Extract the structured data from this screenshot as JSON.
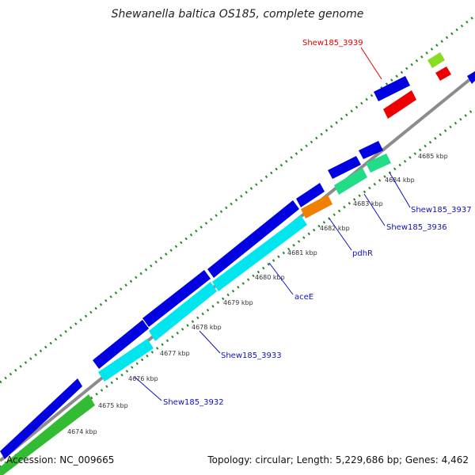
{
  "title": "Shewanella baltica OS185, complete genome",
  "footer": {
    "accession": "Accession: NC_009665",
    "summary": "Topology: circular; Length: 5,229,686 bp; Genes: 4,462"
  },
  "ticks": [
    "4674 kbp",
    "4675 kbp",
    "4676 kbp",
    "4677 kbp",
    "4678 kbp",
    "4679 kbp",
    "4680 kbp",
    "4681 kbp",
    "4682 kbp",
    "4683 kbp",
    "4684 kbp",
    "4685 kbp"
  ],
  "gene_labels": [
    {
      "text": "Shew185_3939",
      "color": "#e00000"
    },
    {
      "text": "Shew185_3937",
      "color": "#1010c0"
    },
    {
      "text": "Shew185_3936",
      "color": "#1010c0"
    },
    {
      "text": "pdhR",
      "color": "#1010c0"
    },
    {
      "text": "aceE",
      "color": "#1010c0"
    },
    {
      "text": "Shew185_3933",
      "color": "#1010c0"
    },
    {
      "text": "Shew185_3932",
      "color": "#1010c0"
    }
  ],
  "colors": {
    "backbone": "#8c8c8c",
    "dots": "#228822",
    "cds": "#0000e0",
    "cyan": "#00e5ee",
    "green": "#33bb33",
    "orange": "#f08000",
    "mint": "#22dd88",
    "red": "#ee0000",
    "lime": "#88dd22"
  }
}
